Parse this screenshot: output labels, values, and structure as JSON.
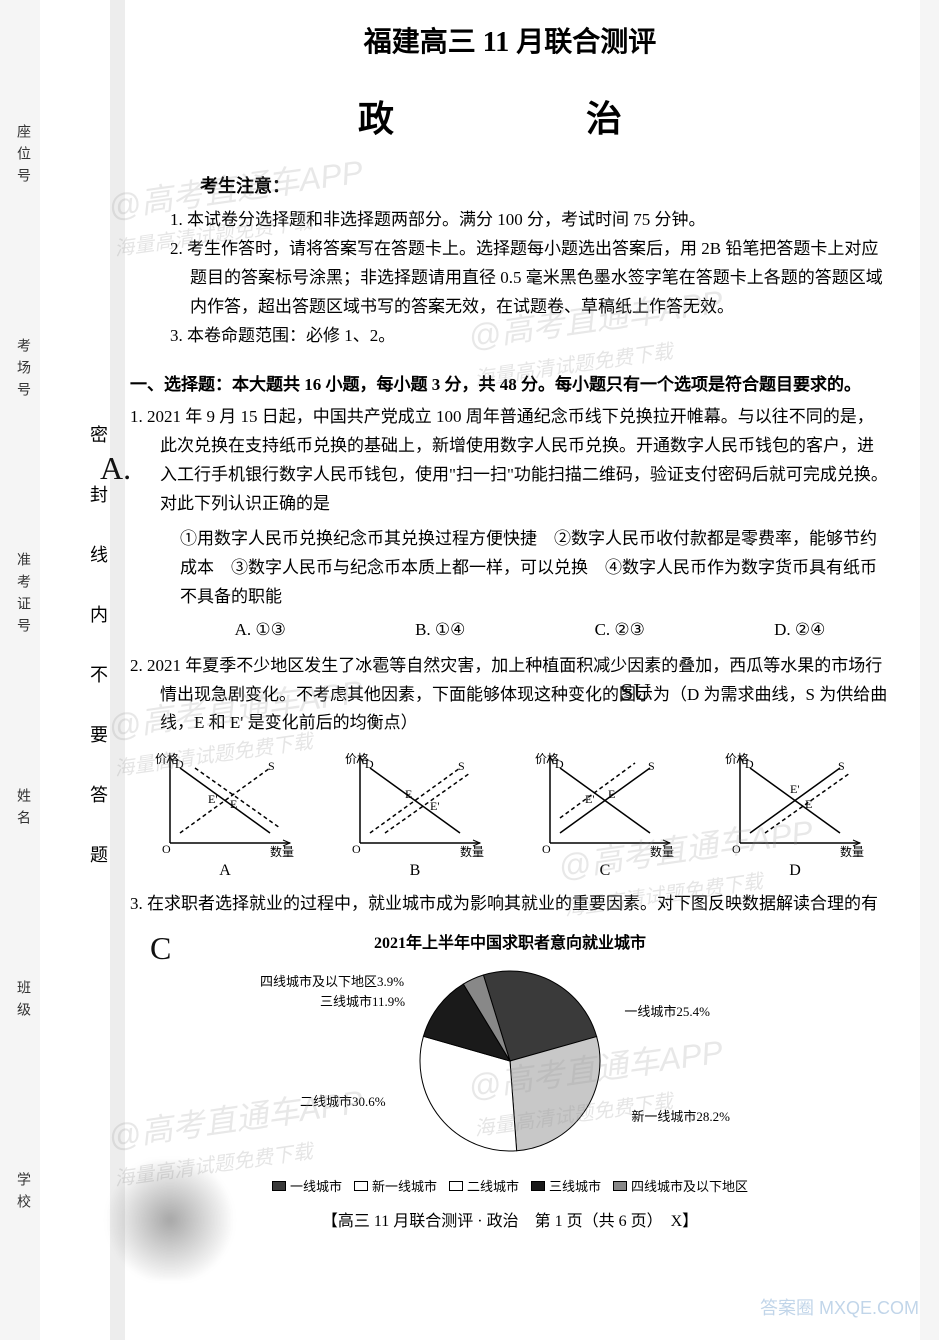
{
  "header": {
    "title": "福建高三 11 月联合测评",
    "subject": "政　　治"
  },
  "sidebar": {
    "labels": [
      "座位号",
      "考场号",
      "准考证号",
      "姓名",
      "班级",
      "学校"
    ]
  },
  "vertical_marker": "密　封　线　内　不　要　答　题",
  "notice": {
    "header": "考生注意：",
    "items": [
      "1. 本试卷分选择题和非选择题两部分。满分 100 分，考试时间 75 分钟。",
      "2. 考生作答时，请将答案写在答题卡上。选择题每小题选出答案后，用 2B 铅笔把答题卡上对应题目的答案标号涂黑；非选择题请用直径 0.5 毫米黑色墨水签字笔在答题卡上各题的答题区域内作答，超出答题区域书写的答案无效，在试题卷、草稿纸上作答无效。",
      "3. 本卷命题范围：必修 1、2。"
    ]
  },
  "section1": {
    "header": "一、选择题：本大题共 16 小题，每小题 3 分，共 48 分。每小题只有一个选项是符合题目要求的。"
  },
  "q1": {
    "text": "1. 2021 年 9 月 15 日起，中国共产党成立 100 周年普通纪念币线下兑换拉开帷幕。与以往不同的是，此次兑换在支持纸币兑换的基础上，新增使用数字人民币兑换。开通数字人民币钱包的客户，进入工行手机银行数字人民币钱包，使用\"扫一扫\"功能扫描二维码，验证支付密码后就可完成兑换。对此下列认识正确的是",
    "sub": "①用数字人民币兑换纪念币其兑换过程方便快捷　②数字人民币收付款都是零费率，能够节约成本　③数字人民币与纪念币本质上都一样，可以兑换　④数字人民币作为数字货币具有纸币不具备的职能",
    "options": [
      "A. ①③",
      "B. ①④",
      "C. ②③",
      "D. ②④"
    ]
  },
  "q2": {
    "text": "2. 2021 年夏季不少地区发生了冰雹等自然灾害，加上种植面积减少因素的叠加，西瓜等水果的市场行情出现急剧变化。不考虑其他因素，下面能够体现这种变化的图示为（D 为需求曲线，S 为供给曲线，E 和 E' 是变化前后的均衡点）",
    "charts": {
      "axis_x": "数量",
      "axis_y": "价格",
      "labels": [
        "A",
        "B",
        "C",
        "D"
      ],
      "D_label": "D",
      "S_label": "S",
      "E_label": "E",
      "E2_label": "E'",
      "line_color": "#000000",
      "dash_color": "#000000",
      "background": "#ffffff"
    }
  },
  "q3": {
    "text": "3. 在求职者选择就业的过程中，就业城市成为影响其就业的重要因素。对下图反映数据解读合理的有",
    "pie": {
      "title": "2021年上半年中国求职者意向就业城市",
      "slices": [
        {
          "label": "一线城市",
          "value": 25.4,
          "color": "#3a3a3a",
          "pattern": "solid",
          "callout": "一线城市25.4%"
        },
        {
          "label": "新一线城市",
          "value": 28.2,
          "color": "#c8c8c8",
          "pattern": "dots",
          "callout": "新一线城市28.2%"
        },
        {
          "label": "二线城市",
          "value": 30.6,
          "color": "#ffffff",
          "pattern": "none",
          "callout": "二线城市30.6%"
        },
        {
          "label": "三线城市",
          "value": 11.9,
          "color": "#1a1a1a",
          "pattern": "solid",
          "callout": "三线城市11.9%"
        },
        {
          "label": "四线城市及以下地区",
          "value": 3.9,
          "color": "#888888",
          "pattern": "hatch",
          "callout": "四线城市及以下地区3.9%"
        }
      ],
      "radius": 90,
      "stroke": "#000000",
      "legend_items": [
        "一线城市",
        "新一线城市",
        "二线城市",
        "三线城市",
        "四线城市及以下地区"
      ],
      "legend_colors": [
        "#3a3a3a",
        "#ffffff",
        "#ffffff",
        "#1a1a1a",
        "#888888"
      ]
    }
  },
  "footer": "【高三 11 月联合测评 · 政治　第 1 页（共 6 页）　X】",
  "watermarks": {
    "main": "@高考直通车APP",
    "sub": "海量高清试题免费下载",
    "corner": "答案圈\nMXQE.COM"
  },
  "handwritten": {
    "a_mark": "A.",
    "d_mark": "D",
    "su_mark": "SU",
    "c_mark": "C",
    "circle1": "○"
  }
}
